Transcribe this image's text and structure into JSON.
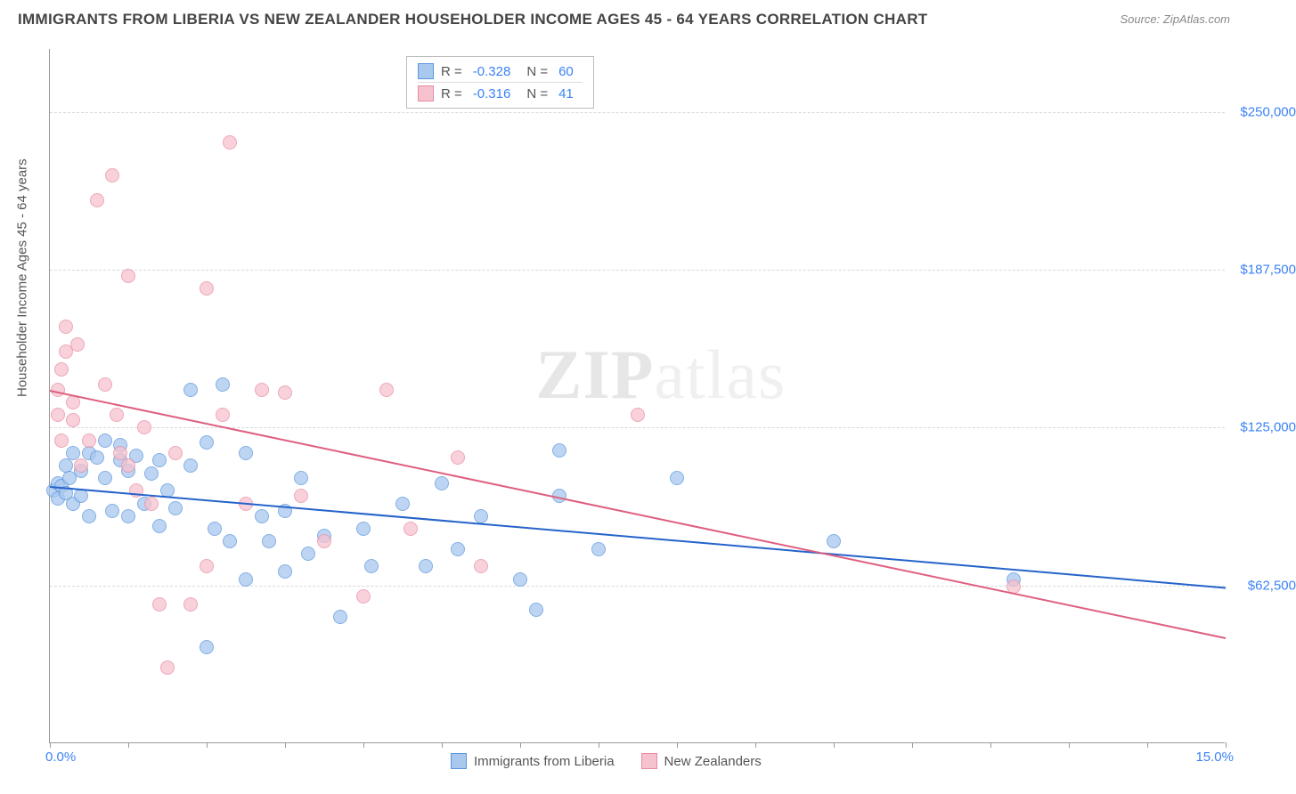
{
  "title": "IMMIGRANTS FROM LIBERIA VS NEW ZEALANDER HOUSEHOLDER INCOME AGES 45 - 64 YEARS CORRELATION CHART",
  "source": "Source: ZipAtlas.com",
  "watermark_a": "ZIP",
  "watermark_b": "atlas",
  "chart": {
    "type": "scatter",
    "y_axis_title": "Householder Income Ages 45 - 64 years",
    "xlim": [
      0.0,
      15.0
    ],
    "ylim": [
      0,
      275000
    ],
    "x_tick_labels": {
      "min": "0.0%",
      "max": "15.0%"
    },
    "y_ticks": [
      {
        "value": 62500,
        "label": "$62,500"
      },
      {
        "value": 125000,
        "label": "$125,000"
      },
      {
        "value": 187500,
        "label": "$187,500"
      },
      {
        "value": 250000,
        "label": "$250,000"
      }
    ],
    "grid_color": "#d8d8d8",
    "background_color": "#ffffff",
    "text_color": "#555555",
    "tick_label_color": "#3b82f6",
    "series": [
      {
        "name": "Immigrants from Liberia",
        "fill": "#a8c8ee",
        "stroke": "#5a95dd",
        "trend_color": "#2563cb",
        "R": "-0.328",
        "N": "60",
        "trend": {
          "x1": 0.0,
          "y1": 102000,
          "x2": 15.0,
          "y2": 62000
        },
        "points": [
          [
            0.05,
            100000
          ],
          [
            0.1,
            103000
          ],
          [
            0.1,
            97000
          ],
          [
            0.15,
            102000
          ],
          [
            0.2,
            99000
          ],
          [
            0.2,
            110000
          ],
          [
            0.25,
            105000
          ],
          [
            0.3,
            115000
          ],
          [
            0.3,
            95000
          ],
          [
            0.4,
            108000
          ],
          [
            0.4,
            98000
          ],
          [
            0.5,
            115000
          ],
          [
            0.5,
            90000
          ],
          [
            0.6,
            113000
          ],
          [
            0.7,
            120000
          ],
          [
            0.7,
            105000
          ],
          [
            0.8,
            92000
          ],
          [
            0.9,
            112000
          ],
          [
            0.9,
            118000
          ],
          [
            1.0,
            90000
          ],
          [
            1.0,
            108000
          ],
          [
            1.1,
            114000
          ],
          [
            1.2,
            95000
          ],
          [
            1.3,
            107000
          ],
          [
            1.4,
            86000
          ],
          [
            1.4,
            112000
          ],
          [
            1.5,
            100000
          ],
          [
            1.6,
            93000
          ],
          [
            1.8,
            110000
          ],
          [
            1.8,
            140000
          ],
          [
            2.0,
            38000
          ],
          [
            2.0,
            119000
          ],
          [
            2.1,
            85000
          ],
          [
            2.2,
            142000
          ],
          [
            2.3,
            80000
          ],
          [
            2.5,
            115000
          ],
          [
            2.5,
            65000
          ],
          [
            2.7,
            90000
          ],
          [
            2.8,
            80000
          ],
          [
            3.0,
            68000
          ],
          [
            3.0,
            92000
          ],
          [
            3.2,
            105000
          ],
          [
            3.3,
            75000
          ],
          [
            3.5,
            82000
          ],
          [
            3.7,
            50000
          ],
          [
            4.0,
            85000
          ],
          [
            4.1,
            70000
          ],
          [
            4.5,
            95000
          ],
          [
            4.8,
            70000
          ],
          [
            5.0,
            103000
          ],
          [
            5.2,
            77000
          ],
          [
            5.5,
            90000
          ],
          [
            6.0,
            65000
          ],
          [
            6.2,
            53000
          ],
          [
            6.5,
            116000
          ],
          [
            6.5,
            98000
          ],
          [
            7.0,
            77000
          ],
          [
            8.0,
            105000
          ],
          [
            10.0,
            80000
          ],
          [
            12.3,
            65000
          ]
        ]
      },
      {
        "name": "New Zealanders",
        "fill": "#f6c2ce",
        "stroke": "#e88ba3",
        "trend_color": "#de5f7f",
        "R": "-0.316",
        "N": "41",
        "trend": {
          "x1": 0.0,
          "y1": 140000,
          "x2": 15.0,
          "y2": 42000
        },
        "points": [
          [
            0.1,
            130000
          ],
          [
            0.1,
            140000
          ],
          [
            0.15,
            148000
          ],
          [
            0.15,
            120000
          ],
          [
            0.2,
            155000
          ],
          [
            0.2,
            165000
          ],
          [
            0.3,
            135000
          ],
          [
            0.3,
            128000
          ],
          [
            0.35,
            158000
          ],
          [
            0.4,
            110000
          ],
          [
            0.5,
            120000
          ],
          [
            0.6,
            215000
          ],
          [
            0.7,
            142000
          ],
          [
            0.8,
            225000
          ],
          [
            0.85,
            130000
          ],
          [
            0.9,
            115000
          ],
          [
            1.0,
            185000
          ],
          [
            1.0,
            110000
          ],
          [
            1.1,
            100000
          ],
          [
            1.2,
            125000
          ],
          [
            1.3,
            95000
          ],
          [
            1.4,
            55000
          ],
          [
            1.5,
            30000
          ],
          [
            1.6,
            115000
          ],
          [
            1.8,
            55000
          ],
          [
            2.0,
            180000
          ],
          [
            2.0,
            70000
          ],
          [
            2.2,
            130000
          ],
          [
            2.3,
            238000
          ],
          [
            2.5,
            95000
          ],
          [
            2.7,
            140000
          ],
          [
            3.0,
            139000
          ],
          [
            3.2,
            98000
          ],
          [
            3.5,
            80000
          ],
          [
            4.0,
            58000
          ],
          [
            4.3,
            140000
          ],
          [
            4.6,
            85000
          ],
          [
            5.2,
            113000
          ],
          [
            5.5,
            70000
          ],
          [
            7.5,
            130000
          ],
          [
            12.3,
            62000
          ]
        ]
      }
    ]
  },
  "legend_bottom": [
    {
      "label": "Immigrants from Liberia",
      "fill": "#a8c8ee",
      "stroke": "#5a95dd"
    },
    {
      "label": "New Zealanders",
      "fill": "#f6c2ce",
      "stroke": "#e88ba3"
    }
  ]
}
